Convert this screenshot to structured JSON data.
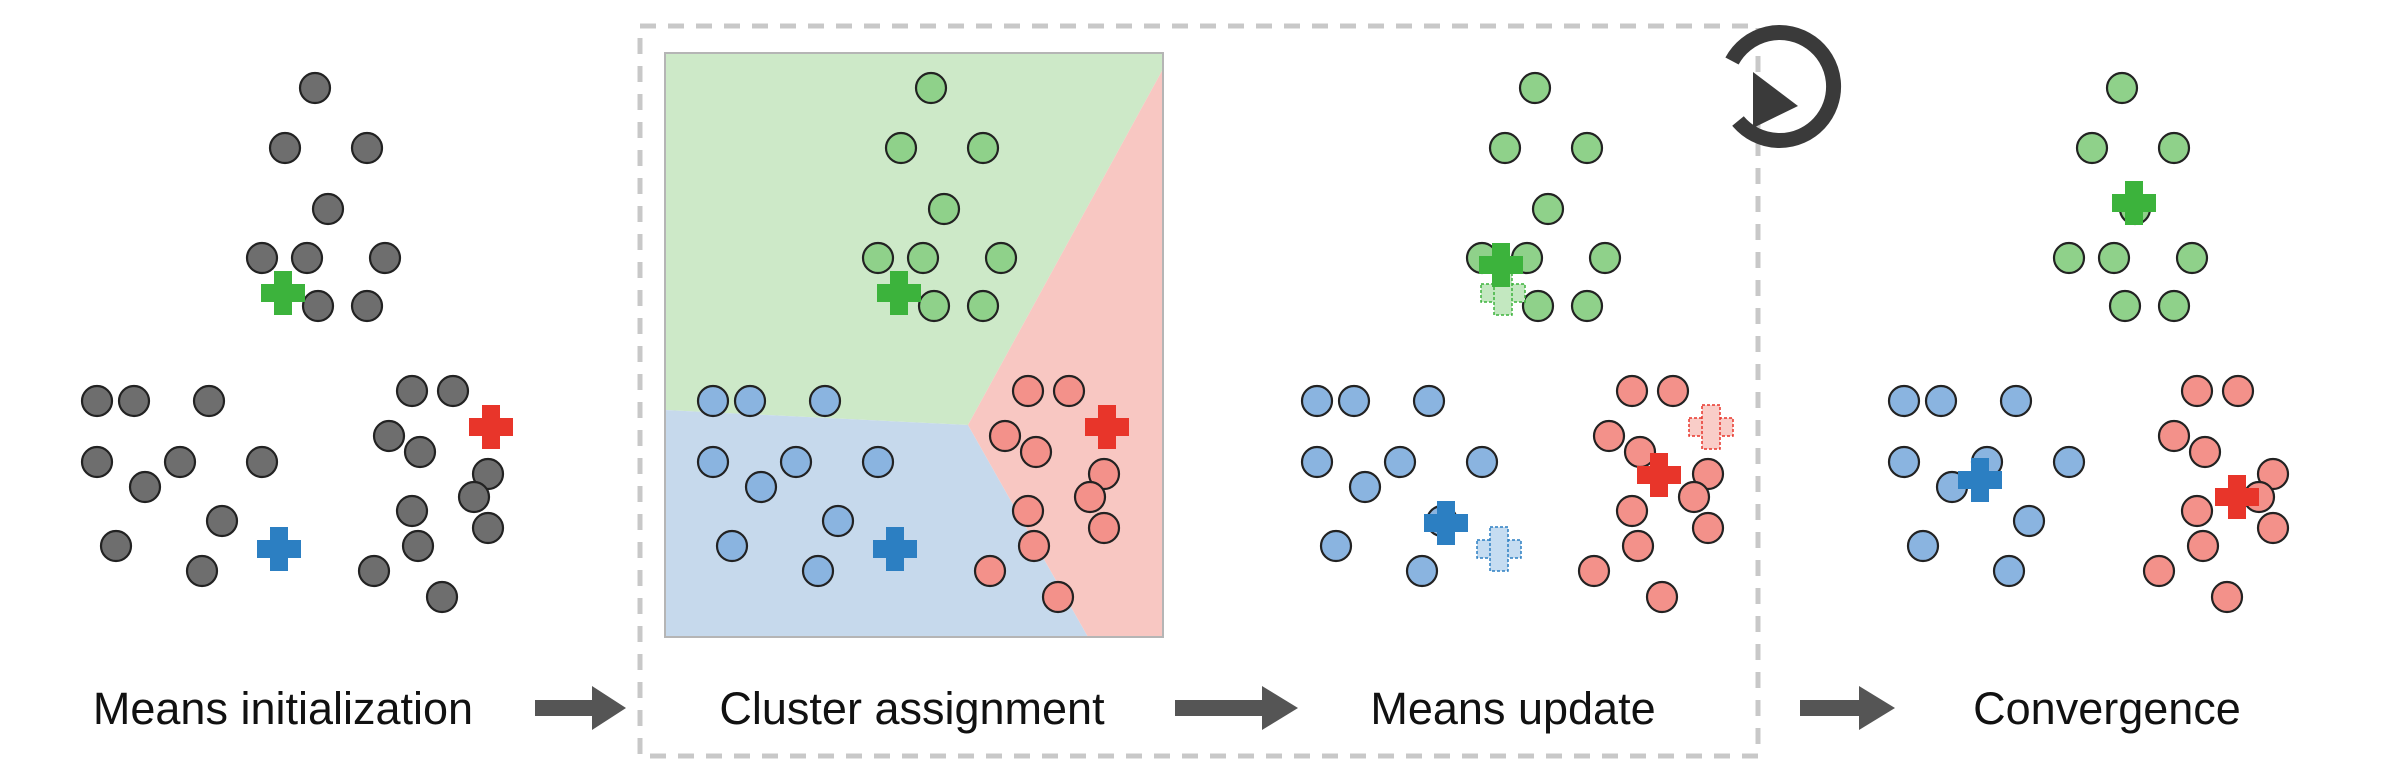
{
  "colors": {
    "gray": "#6e6e6e",
    "green": "#8fd18a",
    "blue": "#8ab4e0",
    "red": "#f3918a",
    "green_region": "#cde9c8",
    "blue_region": "#c6d9ec",
    "red_region": "#f8c7c2",
    "green_mean": "#3cb33c",
    "blue_mean": "#2c7fc2",
    "red_mean": "#e8352a",
    "old_green_mean": "#c3e8c0",
    "old_blue_mean": "#c5dcf1",
    "old_red_mean": "#f9cdc8",
    "arrow": "#555555",
    "dashed_box": "#c8c8c8",
    "loop_icon": "#3a3a3a"
  },
  "steps": [
    {
      "label": "Means initialization"
    },
    {
      "label": "Cluster assignment"
    },
    {
      "label": "Means update"
    },
    {
      "label": "Convergence"
    }
  ],
  "icons": {
    "loop": "refresh-icon",
    "step_arrow": "arrow-right-icon"
  }
}
